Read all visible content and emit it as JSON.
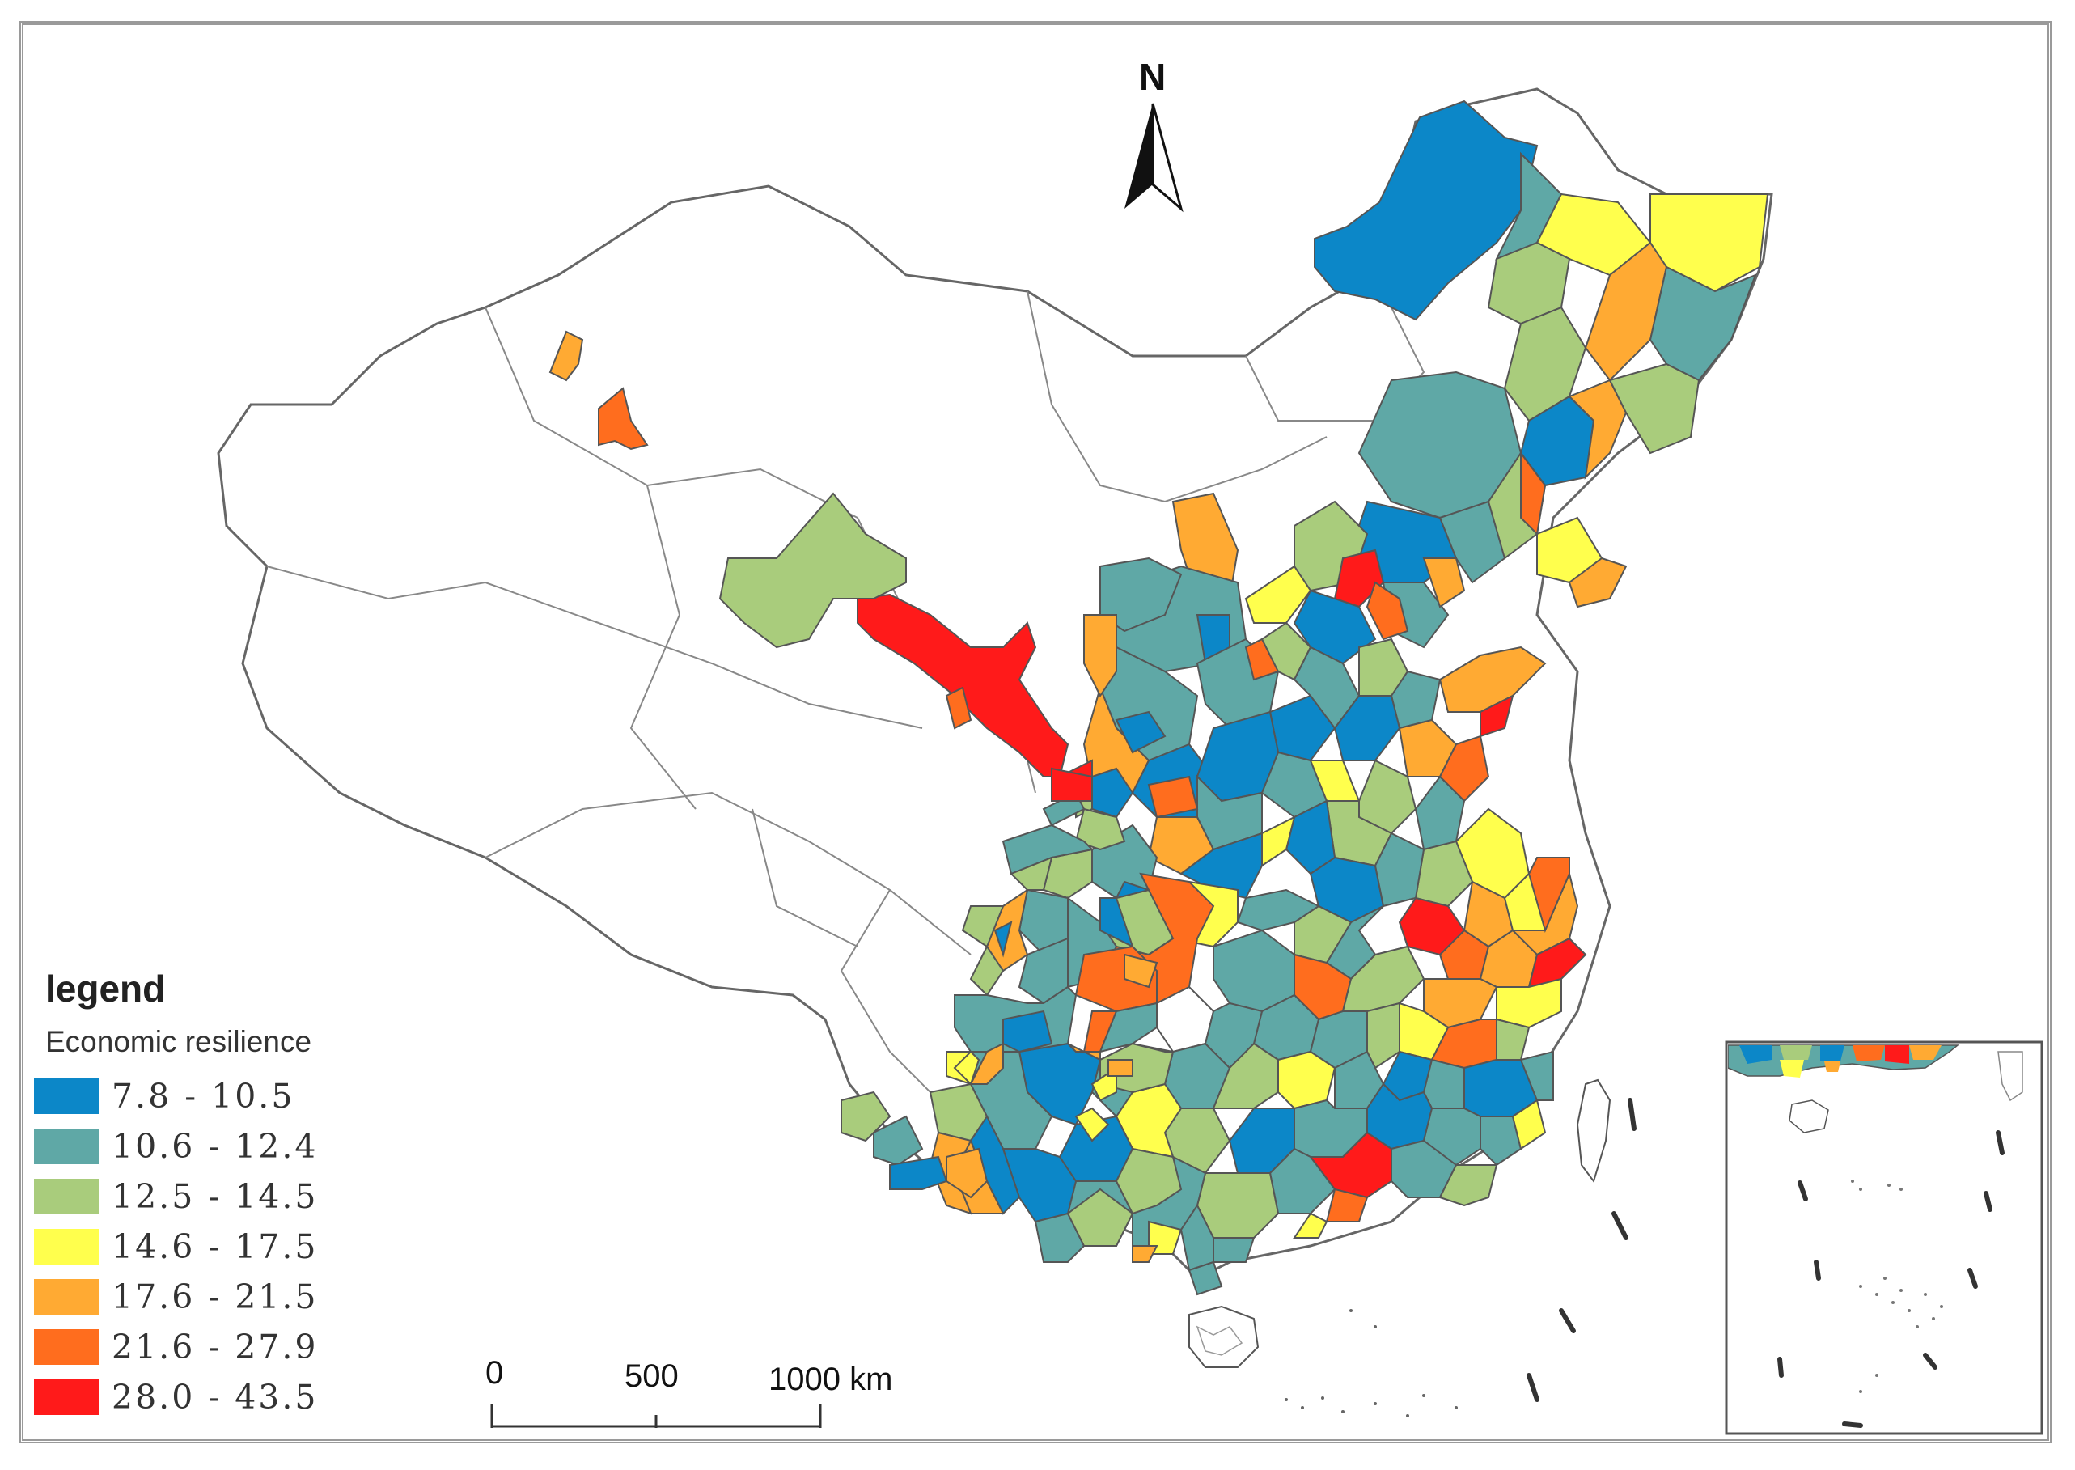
{
  "map": {
    "north_label": "N",
    "legend": {
      "title": "legend",
      "subtitle": "Economic resilience",
      "classes": [
        {
          "label": "7.8 - 10.5",
          "color": "#0c87c8"
        },
        {
          "label": "10.6 - 12.4",
          "color": "#5fa8a6"
        },
        {
          "label": "12.5 - 14.5",
          "color": "#a9cc7c"
        },
        {
          "label": "14.6 - 17.5",
          "color": "#ffff4d"
        },
        {
          "label": "17.6 - 21.5",
          "color": "#ffaa33"
        },
        {
          "label": "21.6 - 27.9",
          "color": "#ff6d1e"
        },
        {
          "label": "28.0 - 43.5",
          "color": "#ff1a1a"
        }
      ]
    },
    "scale_bar": {
      "labels": [
        "0",
        "500",
        "1000 km"
      ]
    },
    "inset": "south-china-sea-islands"
  }
}
